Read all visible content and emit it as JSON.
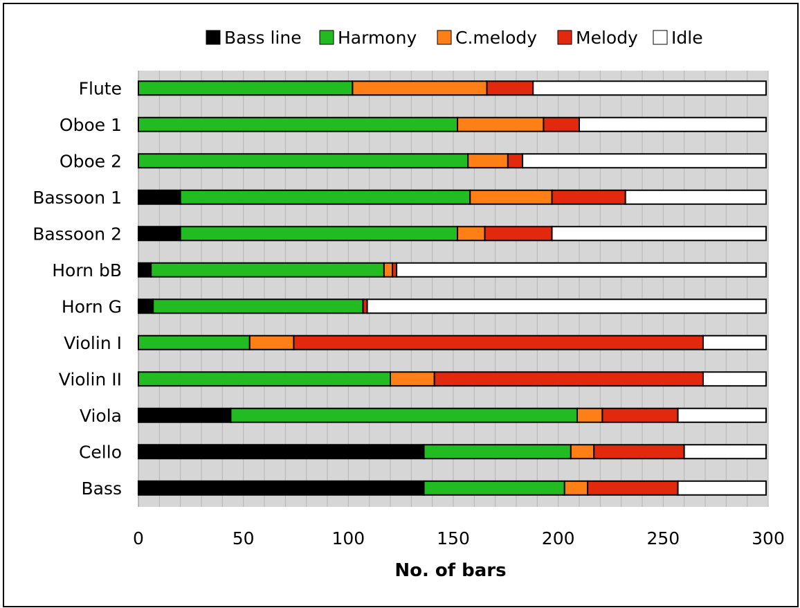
{
  "chart_data": {
    "type": "bar",
    "orientation": "horizontal",
    "stacked": true,
    "title": "",
    "xlabel": "No. of bars",
    "ylabel": "",
    "xlim": [
      0,
      300
    ],
    "x_ticks": [
      "0",
      "50",
      "100",
      "150",
      "200",
      "250",
      "300"
    ],
    "grid": "vertical lines every 10 bars",
    "legend_position": "top",
    "categories": [
      "Flute",
      "Oboe 1",
      "Oboe 2",
      "Bassoon 1",
      "Bassoon 2",
      "Horn bB",
      "Horn G",
      "Violin I",
      "Violin II",
      "Viola",
      "Cello",
      "Bass"
    ],
    "series": [
      {
        "name": "Bass line",
        "color": "#000000",
        "values": [
          0,
          0,
          0,
          20,
          20,
          6,
          7,
          0,
          0,
          44,
          136,
          136
        ]
      },
      {
        "name": "Harmony",
        "color": "#22bb22",
        "values": [
          102,
          152,
          157,
          138,
          132,
          111,
          100,
          53,
          120,
          165,
          70,
          67
        ]
      },
      {
        "name": "C.melody",
        "color": "#ff7f17",
        "values": [
          64,
          41,
          19,
          39,
          13,
          4,
          0,
          21,
          21,
          12,
          11,
          11
        ]
      },
      {
        "name": "Melody",
        "color": "#e2290e",
        "values": [
          22,
          17,
          7,
          35,
          32,
          2,
          2,
          195,
          128,
          36,
          43,
          43
        ]
      },
      {
        "name": "Idle",
        "color": "#ffffff",
        "values": [
          111,
          89,
          116,
          67,
          102,
          176,
          190,
          30,
          30,
          42,
          39,
          42
        ]
      }
    ]
  }
}
